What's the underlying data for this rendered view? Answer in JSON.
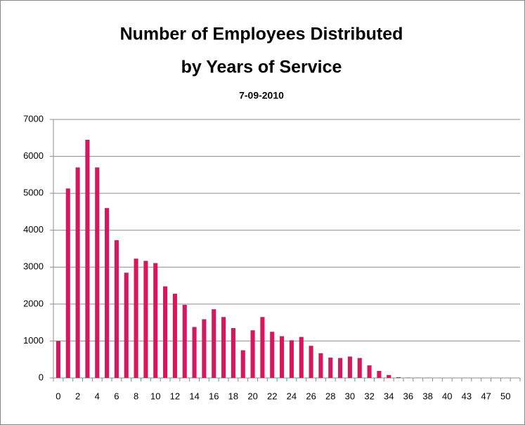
{
  "chart_data": {
    "type": "bar",
    "title": [
      "Number of Employees Distributed",
      "by Years of Service"
    ],
    "subtitle": "7-09-2010",
    "categories": [
      "0",
      null,
      "2",
      null,
      "4",
      null,
      "6",
      null,
      "8",
      null,
      "10",
      null,
      "12",
      null,
      "14",
      null,
      "16",
      null,
      "18",
      null,
      "20",
      null,
      "22",
      null,
      "24",
      null,
      "26",
      null,
      "28",
      null,
      "30",
      null,
      "32",
      null,
      "34",
      null,
      "36",
      null,
      "38",
      null,
      "40",
      null,
      "43",
      null,
      "47",
      null,
      "50",
      null
    ],
    "values": [
      1000,
      5130,
      5700,
      6450,
      5700,
      4600,
      3730,
      2850,
      3230,
      3170,
      3110,
      2480,
      2280,
      1980,
      1380,
      1590,
      1860,
      1650,
      1350,
      750,
      1290,
      1650,
      1250,
      1130,
      1020,
      1110,
      870,
      670,
      550,
      540,
      580,
      540,
      340,
      190,
      80,
      20,
      10,
      5,
      5,
      0,
      0,
      0,
      0,
      0,
      0,
      0,
      0,
      0
    ],
    "color": "#d6175f",
    "ylim": [
      0,
      7000
    ],
    "yticks": [
      0,
      1000,
      2000,
      3000,
      4000,
      5000,
      6000,
      7000
    ],
    "grid": true
  }
}
